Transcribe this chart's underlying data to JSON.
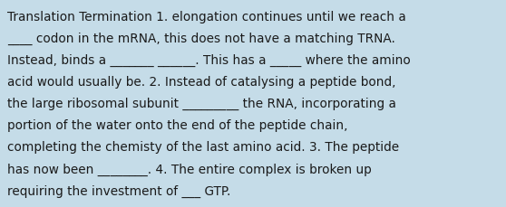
{
  "background_color": "#c5dce8",
  "text_color": "#1a1a1a",
  "font_size": 9.8,
  "font_family": "DejaVu Sans",
  "lines": [
    "Translation Termination 1. elongation continues until we reach a",
    "____ codon in the mRNA, this does not have a matching TRNA.",
    "Instead, binds a _______ ______. This has a _____ where the amino",
    "acid would usually be. 2. Instead of catalysing a peptide bond,",
    "the large ribosomal subunit _________ the RNA, incorporating a",
    "portion of the water onto the end of the peptide chain,",
    "completing the chemisty of the last amino acid. 3. The peptide",
    "has now been ________. 4. The entire complex is broken up",
    "requiring the investment of ___ GTP."
  ],
  "figwidth": 5.58,
  "figheight": 2.3,
  "dpi": 100
}
